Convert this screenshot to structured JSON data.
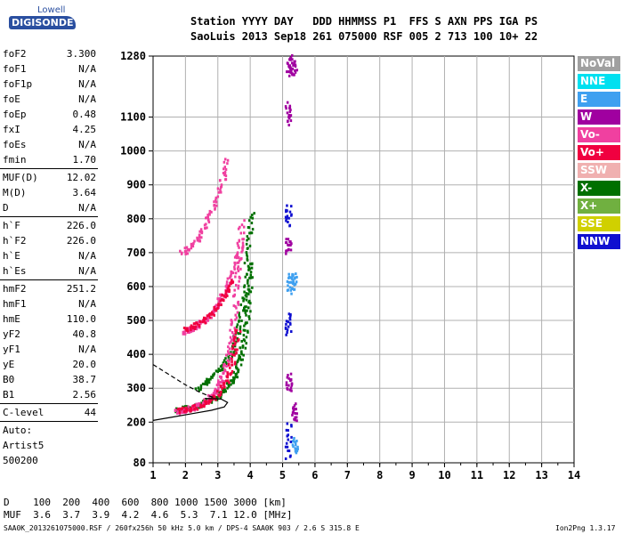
{
  "logo": {
    "line1": "Lowell",
    "line2": "DIGISONDE"
  },
  "header": {
    "labels": "Station YYYY DAY   DDD HHMMSS P1  FFS S AXN PPS IGA PS",
    "values": "SaoLuis 2013 Sep18 261 075000 RSF 005 2 713 100 10+ 22"
  },
  "params": [
    {
      "name": "foF2",
      "value": "3.300"
    },
    {
      "name": "foF1",
      "value": "N/A"
    },
    {
      "name": "foF1p",
      "value": "N/A"
    },
    {
      "name": "foE",
      "value": "N/A"
    },
    {
      "name": "foEp",
      "value": "0.48"
    },
    {
      "name": "fxI",
      "value": "4.25"
    },
    {
      "name": "foEs",
      "value": "N/A"
    },
    {
      "name": "fmin",
      "value": "1.70"
    }
  ],
  "params2": [
    {
      "name": "MUF(D)",
      "value": "12.02"
    },
    {
      "name": "M(D)",
      "value": "3.64"
    },
    {
      "name": "D",
      "value": "N/A"
    }
  ],
  "params3": [
    {
      "name": "h`F",
      "value": "226.0"
    },
    {
      "name": "h`F2",
      "value": "226.0"
    },
    {
      "name": "h`E",
      "value": "N/A"
    },
    {
      "name": "h`Es",
      "value": "N/A"
    }
  ],
  "params4": [
    {
      "name": "hmF2",
      "value": "251.2"
    },
    {
      "name": "hmF1",
      "value": "N/A"
    },
    {
      "name": "hmE",
      "value": "110.0"
    },
    {
      "name": "yF2",
      "value": "40.8"
    },
    {
      "name": "yF1",
      "value": "N/A"
    },
    {
      "name": "yE",
      "value": "20.0"
    },
    {
      "name": "B0",
      "value": "38.7"
    },
    {
      "name": "B1",
      "value": "2.56"
    }
  ],
  "clevel": {
    "name": "C-level",
    "value": "44"
  },
  "auto": {
    "line1": "Auto:",
    "line2": "Artist5",
    "line3": "500200"
  },
  "legend": [
    {
      "label": "NoVal",
      "color": "#a0a0a0"
    },
    {
      "label": "NNE",
      "color": "#00e0f0"
    },
    {
      "label": "E",
      "color": "#3fa0f0"
    },
    {
      "label": "W",
      "color": "#a000a0"
    },
    {
      "label": "Vo-",
      "color": "#f040a0"
    },
    {
      "label": "Vo+",
      "color": "#f00040"
    },
    {
      "label": "SSW",
      "color": "#f0b0b0"
    },
    {
      "label": "X-",
      "color": "#007000"
    },
    {
      "label": "X+",
      "color": "#70b040"
    },
    {
      "label": "SSE",
      "color": "#d0d000"
    },
    {
      "label": "NNW",
      "color": "#1010d0"
    }
  ],
  "muf_table": {
    "row1": "D    100  200  400  600  800 1000 1500 3000 [km]",
    "row2": "MUF  3.6  3.7  3.9  4.2  4.6  5.3  7.1 12.0 [MHz]"
  },
  "footer": "SAA0K_2013261075000.RSF / 260fx256h 50 kHz 5.0 km / DPS-4 SAA0K 903 / 2.6 S 315.8 E",
  "footer_right": "Ion2Png 1.3.17",
  "chart_data": {
    "type": "scatter",
    "xlim": [
      1,
      14
    ],
    "ylim": [
      80,
      1280
    ],
    "x_ticks": [
      1,
      2,
      3,
      4,
      5,
      6,
      7,
      8,
      9,
      10,
      11,
      12,
      13,
      14
    ],
    "y_ticks": [
      80,
      200,
      300,
      400,
      500,
      600,
      700,
      800,
      900,
      1000,
      1100,
      1280
    ],
    "grid": true,
    "xlabel": "",
    "ylabel": "",
    "series": [
      {
        "name": "X-",
        "color": "#007000",
        "traces": [
          [
            [
              1.75,
              235
            ],
            [
              2.0,
              240
            ],
            [
              2.4,
              250
            ],
            [
              2.8,
              265
            ],
            [
              3.2,
              290
            ],
            [
              3.5,
              330
            ],
            [
              3.7,
              390
            ],
            [
              3.85,
              460
            ],
            [
              3.95,
              560
            ],
            [
              4.05,
              680
            ]
          ],
          [
            [
              2.4,
              300
            ],
            [
              2.8,
              330
            ],
            [
              3.2,
              370
            ],
            [
              3.5,
              420
            ],
            [
              3.7,
              500
            ],
            [
              3.85,
              600
            ],
            [
              3.95,
              720
            ],
            [
              4.05,
              820
            ]
          ]
        ]
      },
      {
        "name": "Vo-",
        "color": "#f040a0",
        "traces": [
          [
            [
              1.7,
              232
            ],
            [
              2.0,
              237
            ],
            [
              2.3,
              245
            ],
            [
              2.6,
              260
            ],
            [
              2.9,
              285
            ],
            [
              3.1,
              320
            ],
            [
              3.3,
              380
            ],
            [
              3.45,
              460
            ],
            [
              3.55,
              560
            ],
            [
              3.65,
              680
            ],
            [
              3.75,
              800
            ]
          ],
          [
            [
              1.9,
              465
            ],
            [
              2.3,
              480
            ],
            [
              2.7,
              510
            ],
            [
              3.0,
              550
            ],
            [
              3.3,
              600
            ],
            [
              3.55,
              660
            ],
            [
              3.75,
              740
            ]
          ],
          [
            [
              1.9,
              700
            ],
            [
              2.2,
              720
            ],
            [
              2.5,
              760
            ],
            [
              2.8,
              820
            ],
            [
              3.1,
              900
            ],
            [
              3.3,
              980
            ]
          ]
        ]
      },
      {
        "name": "Vo+",
        "color": "#f00040",
        "traces": [
          [
            [
              1.8,
              236
            ],
            [
              2.2,
              242
            ],
            [
              2.6,
              255
            ],
            [
              3.0,
              280
            ],
            [
              3.3,
              330
            ],
            [
              3.5,
              400
            ],
            [
              3.62,
              480
            ]
          ],
          [
            [
              1.95,
              470
            ],
            [
              2.4,
              490
            ],
            [
              2.8,
              520
            ],
            [
              3.2,
              570
            ],
            [
              3.5,
              620
            ]
          ]
        ]
      },
      {
        "name": "NNW",
        "color": "#1010d0",
        "traces": [
          [
            [
              5.18,
              520
            ],
            [
              5.18,
              460
            ]
          ],
          [
            [
              5.18,
              840
            ],
            [
              5.18,
              780
            ]
          ],
          [
            [
              5.18,
              200
            ],
            [
              5.18,
              90
            ]
          ]
        ]
      },
      {
        "name": "W",
        "color": "#a000a0",
        "traces": [
          [
            [
              5.2,
              1280
            ],
            [
              5.2,
              1220
            ]
          ],
          [
            [
              5.17,
              1140
            ],
            [
              5.17,
              1080
            ]
          ],
          [
            [
              5.18,
              740
            ],
            [
              5.18,
              700
            ]
          ],
          [
            [
              5.2,
              340
            ],
            [
              5.2,
              290
            ]
          ],
          [
            [
              5.35,
              1270
            ],
            [
              5.35,
              1220
            ]
          ],
          [
            [
              5.38,
              250
            ],
            [
              5.38,
              200
            ]
          ]
        ]
      },
      {
        "name": "E",
        "color": "#3fa0f0",
        "traces": [
          [
            [
              5.22,
              640
            ],
            [
              5.22,
              580
            ]
          ],
          [
            [
              5.36,
              640
            ],
            [
              5.36,
              590
            ]
          ],
          [
            [
              5.38,
              150
            ],
            [
              5.38,
              110
            ]
          ]
        ]
      }
    ],
    "curves": [
      {
        "name": "profile-solid",
        "points": [
          [
            1.0,
            205
          ],
          [
            1.6,
            215
          ],
          [
            2.2,
            225
          ],
          [
            2.8,
            235
          ],
          [
            3.2,
            245
          ],
          [
            3.3,
            258
          ],
          [
            3.1,
            268
          ],
          [
            2.6,
            270
          ]
        ]
      },
      {
        "name": "profile-dashed",
        "points": [
          [
            1.0,
            370
          ],
          [
            1.5,
            340
          ],
          [
            2.0,
            310
          ],
          [
            2.4,
            290
          ],
          [
            2.7,
            278
          ],
          [
            2.9,
            272
          ]
        ]
      }
    ]
  }
}
